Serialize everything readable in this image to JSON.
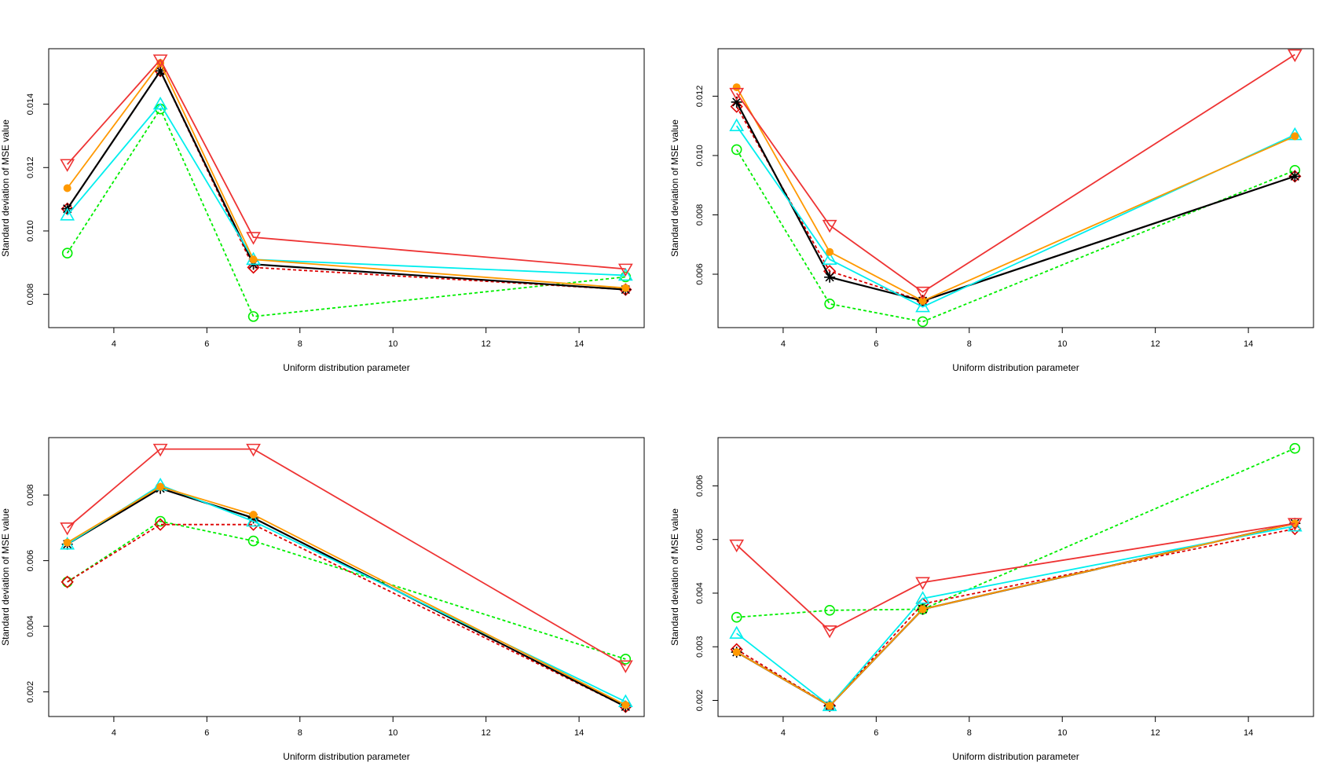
{
  "chart_data": [
    {
      "type": "line",
      "xlabel": "Uniform distribution parameter",
      "ylabel": "Standard deviation of MSE value",
      "x": [
        3,
        5,
        7,
        15
      ],
      "xlim": [
        2.6,
        15.4
      ],
      "ylim": [
        0.00695,
        0.01575
      ],
      "xticks": [
        4,
        6,
        8,
        10,
        12,
        14
      ],
      "xtick_labels": [
        "4",
        "6",
        "8",
        "10",
        "12",
        "14"
      ],
      "yticks": [
        0.008,
        0.01,
        0.012,
        0.014
      ],
      "ytick_labels": [
        "0.008",
        "0.010",
        "0.012",
        "0.014"
      ],
      "series": [
        {
          "name": "series-green-circle",
          "values": [
            0.0093,
            0.01385,
            0.0073,
            0.00855
          ]
        },
        {
          "name": "series-red-diamond",
          "values": [
            0.0107,
            0.01505,
            0.00885,
            0.00815
          ]
        },
        {
          "name": "series-black-star",
          "values": [
            0.0107,
            0.01505,
            0.00895,
            0.00815
          ]
        },
        {
          "name": "series-cyan-triangle",
          "values": [
            0.0105,
            0.014,
            0.0091,
            0.0086
          ]
        },
        {
          "name": "series-orange-dot",
          "values": [
            0.01135,
            0.0153,
            0.0091,
            0.0082
          ]
        },
        {
          "name": "series-red-triangle-down",
          "values": [
            0.0121,
            0.0154,
            0.0098,
            0.0088
          ]
        }
      ]
    },
    {
      "type": "line",
      "xlabel": "Uniform distribution parameter",
      "ylabel": "Standard deviation of MSE value",
      "x": [
        3,
        5,
        7,
        15
      ],
      "xlim": [
        2.6,
        15.4
      ],
      "ylim": [
        0.0042,
        0.0136
      ],
      "xticks": [
        4,
        6,
        8,
        10,
        12,
        14
      ],
      "xtick_labels": [
        "4",
        "6",
        "8",
        "10",
        "12",
        "14"
      ],
      "yticks": [
        0.006,
        0.008,
        0.01,
        0.012
      ],
      "ytick_labels": [
        "0.006",
        "0.008",
        "0.010",
        "0.012"
      ],
      "series": [
        {
          "name": "series-green-circle",
          "values": [
            0.0102,
            0.005,
            0.0044,
            0.0095
          ]
        },
        {
          "name": "series-red-diamond",
          "values": [
            0.01165,
            0.0061,
            0.0051,
            0.0093
          ]
        },
        {
          "name": "series-black-star",
          "values": [
            0.0118,
            0.0059,
            0.0051,
            0.0093
          ]
        },
        {
          "name": "series-cyan-triangle",
          "values": [
            0.011,
            0.0065,
            0.0049,
            0.0107
          ]
        },
        {
          "name": "series-orange-dot",
          "values": [
            0.0123,
            0.00675,
            0.0051,
            0.01065
          ]
        },
        {
          "name": "series-red-triangle-down",
          "values": [
            0.0121,
            0.00765,
            0.0054,
            0.0134
          ]
        }
      ]
    },
    {
      "type": "line",
      "xlabel": "Uniform distribution parameter",
      "ylabel": "Standard deviation of MSE value",
      "x": [
        3,
        5,
        7,
        15
      ],
      "xlim": [
        2.6,
        15.4
      ],
      "ylim": [
        0.00125,
        0.00975
      ],
      "xticks": [
        4,
        6,
        8,
        10,
        12,
        14
      ],
      "xtick_labels": [
        "4",
        "6",
        "8",
        "10",
        "12",
        "14"
      ],
      "yticks": [
        0.002,
        0.004,
        0.006,
        0.008
      ],
      "ytick_labels": [
        "0.002",
        "0.004",
        "0.006",
        "0.008"
      ],
      "series": [
        {
          "name": "series-green-circle",
          "values": [
            0.00535,
            0.0072,
            0.0066,
            0.003
          ]
        },
        {
          "name": "series-red-diamond",
          "values": [
            0.00535,
            0.0071,
            0.0071,
            0.00155
          ]
        },
        {
          "name": "series-black-star",
          "values": [
            0.0065,
            0.0082,
            0.0073,
            0.00155
          ]
        },
        {
          "name": "series-cyan-triangle",
          "values": [
            0.0065,
            0.0083,
            0.0072,
            0.0017
          ]
        },
        {
          "name": "series-orange-dot",
          "values": [
            0.00655,
            0.00825,
            0.0074,
            0.0016
          ]
        },
        {
          "name": "series-red-triangle-down",
          "values": [
            0.007,
            0.0094,
            0.0094,
            0.0028
          ]
        }
      ]
    },
    {
      "type": "line",
      "xlabel": "Uniform distribution parameter",
      "ylabel": "Standard deviation of MSE value",
      "x": [
        3,
        5,
        7,
        15
      ],
      "xlim": [
        2.6,
        15.4
      ],
      "ylim": [
        0.0017,
        0.0069
      ],
      "xticks": [
        4,
        6,
        8,
        10,
        12,
        14
      ],
      "xtick_labels": [
        "4",
        "6",
        "8",
        "10",
        "12",
        "14"
      ],
      "yticks": [
        0.002,
        0.003,
        0.004,
        0.005,
        0.006
      ],
      "ytick_labels": [
        "0.002",
        "0.003",
        "0.004",
        "0.005",
        "0.006"
      ],
      "series": [
        {
          "name": "series-green-circle",
          "values": [
            0.00355,
            0.00368,
            0.0037,
            0.0067
          ]
        },
        {
          "name": "series-red-diamond",
          "values": [
            0.00295,
            0.0019,
            0.0038,
            0.0052
          ]
        },
        {
          "name": "series-black-star",
          "values": [
            0.0029,
            0.0019,
            0.0037,
            0.0053
          ]
        },
        {
          "name": "series-cyan-triangle",
          "values": [
            0.00325,
            0.0019,
            0.0039,
            0.00525
          ]
        },
        {
          "name": "series-orange-dot",
          "values": [
            0.0029,
            0.0019,
            0.0037,
            0.0053
          ]
        },
        {
          "name": "series-red-triangle-down",
          "values": [
            0.0049,
            0.0033,
            0.0042,
            0.0053
          ]
        }
      ]
    }
  ],
  "series_styles": [
    {
      "color": "#00ee00",
      "line": "dotted",
      "marker": "circle"
    },
    {
      "color": "#dd0000",
      "line": "dotted",
      "marker": "diamond"
    },
    {
      "color": "#000000",
      "line": "solid",
      "marker": "star"
    },
    {
      "color": "#00eeee",
      "line": "solid",
      "marker": "triangle-up"
    },
    {
      "color": "#ff9900",
      "line": "solid",
      "marker": "dot"
    },
    {
      "color": "#ee3333",
      "line": "solid",
      "marker": "triangle-down"
    }
  ]
}
